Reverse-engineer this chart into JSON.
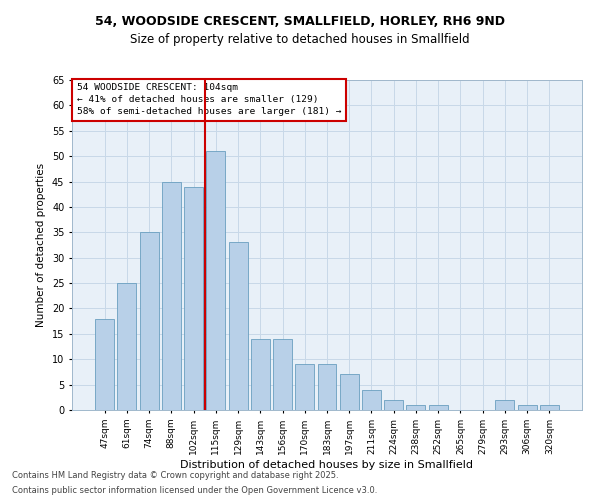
{
  "title1": "54, WOODSIDE CRESCENT, SMALLFIELD, HORLEY, RH6 9ND",
  "title2": "Size of property relative to detached houses in Smallfield",
  "xlabel": "Distribution of detached houses by size in Smallfield",
  "ylabel": "Number of detached properties",
  "categories": [
    "47sqm",
    "61sqm",
    "74sqm",
    "88sqm",
    "102sqm",
    "115sqm",
    "129sqm",
    "143sqm",
    "156sqm",
    "170sqm",
    "183sqm",
    "197sqm",
    "211sqm",
    "224sqm",
    "238sqm",
    "252sqm",
    "265sqm",
    "279sqm",
    "293sqm",
    "306sqm",
    "320sqm"
  ],
  "values": [
    18,
    25,
    35,
    45,
    44,
    51,
    33,
    14,
    14,
    9,
    9,
    7,
    4,
    2,
    1,
    1,
    0,
    0,
    2,
    1,
    1
  ],
  "bar_color": "#b8d0e8",
  "bar_edge_color": "#6a9fc0",
  "grid_color": "#c8d8e8",
  "background_color": "#e8f0f8",
  "plot_bg_color": "#e8f0f8",
  "annotation_box_color": "#ffffff",
  "annotation_box_edge": "#cc0000",
  "property_line_color": "#cc0000",
  "property_index": 4.5,
  "property_label": "54 WOODSIDE CRESCENT: 104sqm",
  "smaller_text": "← 41% of detached houses are smaller (129)",
  "larger_text": "58% of semi-detached houses are larger (181) →",
  "ylim": [
    0,
    65
  ],
  "yticks": [
    0,
    5,
    10,
    15,
    20,
    25,
    30,
    35,
    40,
    45,
    50,
    55,
    60,
    65
  ],
  "footnote1": "Contains HM Land Registry data © Crown copyright and database right 2025.",
  "footnote2": "Contains public sector information licensed under the Open Government Licence v3.0.",
  "fig_width": 6.0,
  "fig_height": 5.0
}
